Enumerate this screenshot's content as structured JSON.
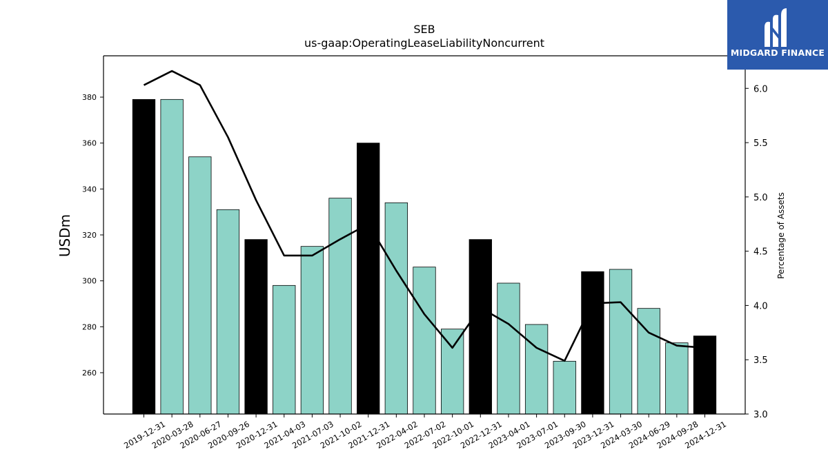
{
  "brand": {
    "name": "MIDGARD FINANCE",
    "bg_color": "#2b5aad"
  },
  "chart_data": {
    "type": "bar",
    "title": "SEB",
    "subtitle": "us-gaap:OperatingLeaseLiabilityNoncurrent",
    "ylabel": "USDm",
    "y2label": "Percentage of Assets",
    "ylim": [
      242,
      398
    ],
    "y2lim": [
      3.0,
      6.3
    ],
    "yticks": [
      260,
      280,
      300,
      320,
      340,
      360,
      380
    ],
    "y2ticks": [
      "3.0",
      "3.5",
      "4.0",
      "4.5",
      "5.0",
      "5.5",
      "6.0"
    ],
    "categories": [
      "2019-12-31",
      "2020-03-28",
      "2020-06-27",
      "2020-09-26",
      "2020-12-31",
      "2021-04-03",
      "2021-07-03",
      "2021-10-02",
      "2021-12-31",
      "2022-04-02",
      "2022-07-02",
      "2022-10-01",
      "2022-12-31",
      "2023-04-01",
      "2023-07-01",
      "2023-09-30",
      "2023-12-31",
      "2024-03-30",
      "2024-06-29",
      "2024-09-28",
      "2024-12-31"
    ],
    "series": [
      {
        "type": "bar",
        "values": [
          379,
          379,
          354,
          331,
          318,
          298,
          315,
          336,
          360,
          334,
          306,
          279,
          318,
          299,
          281,
          265,
          304,
          305,
          288,
          273,
          276
        ],
        "highlight": [
          true,
          false,
          false,
          false,
          true,
          false,
          false,
          false,
          true,
          false,
          false,
          false,
          true,
          false,
          false,
          false,
          true,
          false,
          false,
          false,
          true
        ],
        "color": "#8dd3c7",
        "highlight_color": "#000000"
      },
      {
        "type": "line",
        "axis": "secondary",
        "values": [
          6.03,
          6.16,
          6.03,
          5.55,
          4.97,
          4.46,
          4.46,
          4.61,
          4.75,
          4.32,
          3.92,
          3.61,
          3.98,
          3.83,
          3.61,
          3.49,
          4.02,
          4.03,
          3.75,
          3.63,
          3.61
        ],
        "color": "#000000"
      }
    ],
    "grid": false
  }
}
